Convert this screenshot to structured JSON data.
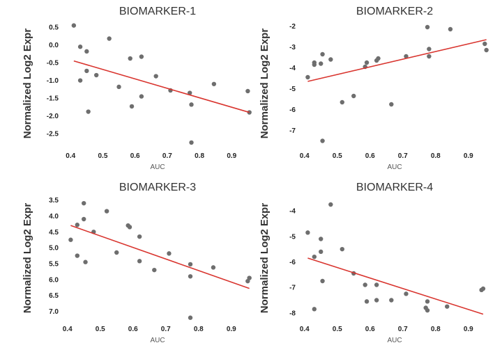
{
  "chart_data": [
    {
      "type": "scatter",
      "title": "BIOMARKER-1",
      "xlabel": "AUC",
      "ylabel": "Normalized Log2 Expr",
      "xlim": [
        0.38,
        0.96
      ],
      "ylim": [
        -2.85,
        0.68
      ],
      "y_inverted": false,
      "xticks": [
        0.4,
        0.5,
        0.6,
        0.7,
        0.8,
        0.9
      ],
      "xtick_labels": [
        "0.4",
        "0.5",
        "0.6",
        "0.7",
        "0.8",
        "0.9"
      ],
      "yticks": [
        0.5,
        0,
        -0.5,
        -1,
        -1.5,
        -2,
        -2.5
      ],
      "ytick_labels": [
        "0.5",
        "0.0",
        "-0.5",
        "-1.0",
        "-1.5",
        "-2.0",
        "-2.5"
      ],
      "point_color": "#6e6e6e",
      "line_color": "#d9352f",
      "points": [
        {
          "x": 0.41,
          "y": 0.55
        },
        {
          "x": 0.43,
          "y": -0.05
        },
        {
          "x": 0.43,
          "y": -1.0
        },
        {
          "x": 0.45,
          "y": -0.18
        },
        {
          "x": 0.45,
          "y": -0.73
        },
        {
          "x": 0.455,
          "y": -1.88
        },
        {
          "x": 0.48,
          "y": -0.85
        },
        {
          "x": 0.52,
          "y": 0.18
        },
        {
          "x": 0.55,
          "y": -1.18
        },
        {
          "x": 0.585,
          "y": -0.38
        },
        {
          "x": 0.59,
          "y": -1.73
        },
        {
          "x": 0.62,
          "y": -0.33
        },
        {
          "x": 0.62,
          "y": -1.45
        },
        {
          "x": 0.665,
          "y": -0.88
        },
        {
          "x": 0.71,
          "y": -1.28
        },
        {
          "x": 0.77,
          "y": -1.35
        },
        {
          "x": 0.775,
          "y": -1.68
        },
        {
          "x": 0.775,
          "y": -2.75
        },
        {
          "x": 0.845,
          "y": -1.1
        },
        {
          "x": 0.95,
          "y": -1.3
        },
        {
          "x": 0.955,
          "y": -1.9
        }
      ],
      "trend": {
        "x0": 0.41,
        "y0": -0.45,
        "x1": 0.955,
        "y1": -1.9
      }
    },
    {
      "type": "scatter",
      "title": "BIOMARKER-2",
      "xlabel": "AUC",
      "ylabel": "Normalized Log2 Expr",
      "xlim": [
        0.39,
        0.96
      ],
      "ylim": [
        -7.75,
        -1.75
      ],
      "y_inverted": false,
      "xticks": [
        0.4,
        0.5,
        0.6,
        0.7,
        0.8,
        0.9
      ],
      "xtick_labels": [
        "0.4",
        "0.5",
        "0.6",
        "0.7",
        "0.8",
        "0.9"
      ],
      "yticks": [
        -2,
        -3,
        -4,
        -5,
        -6,
        -7
      ],
      "ytick_labels": [
        "-2",
        "-3",
        "-4",
        "-5",
        "-6",
        "-7"
      ],
      "point_color": "#6e6e6e",
      "line_color": "#d9352f",
      "points": [
        {
          "x": 0.41,
          "y": -4.45
        },
        {
          "x": 0.43,
          "y": -3.75
        },
        {
          "x": 0.43,
          "y": -3.85
        },
        {
          "x": 0.45,
          "y": -3.8
        },
        {
          "x": 0.455,
          "y": -3.35
        },
        {
          "x": 0.455,
          "y": -7.5
        },
        {
          "x": 0.48,
          "y": -3.6
        },
        {
          "x": 0.515,
          "y": -5.65
        },
        {
          "x": 0.55,
          "y": -5.35
        },
        {
          "x": 0.585,
          "y": -3.95
        },
        {
          "x": 0.59,
          "y": -3.75
        },
        {
          "x": 0.62,
          "y": -3.65
        },
        {
          "x": 0.625,
          "y": -3.55
        },
        {
          "x": 0.665,
          "y": -5.75
        },
        {
          "x": 0.71,
          "y": -3.45
        },
        {
          "x": 0.775,
          "y": -2.05
        },
        {
          "x": 0.78,
          "y": -3.1
        },
        {
          "x": 0.78,
          "y": -3.45
        },
        {
          "x": 0.845,
          "y": -2.15
        },
        {
          "x": 0.95,
          "y": -2.85
        },
        {
          "x": 0.955,
          "y": -3.15
        }
      ],
      "trend": {
        "x0": 0.41,
        "y0": -4.65,
        "x1": 0.955,
        "y1": -2.65
      }
    },
    {
      "type": "scatter",
      "title": "BIOMARKER-3",
      "xlabel": "AUC",
      "ylabel": "Normalized Log2 Expr",
      "xlim": [
        0.39,
        0.96
      ],
      "ylim": [
        3.4,
        7.25
      ],
      "y_inverted": true,
      "xticks": [
        0.4,
        0.5,
        0.6,
        0.7,
        0.8,
        0.9
      ],
      "xtick_labels": [
        "0.4",
        "0.5",
        "0.6",
        "0.7",
        "0.8",
        "0.9"
      ],
      "yticks": [
        3.5,
        4,
        4.5,
        5,
        5.5,
        6,
        6.5,
        7
      ],
      "ytick_labels": [
        "3.5",
        "4.0",
        "4.5",
        "5.0",
        "5.5",
        "6.0",
        "6.5",
        "7.0"
      ],
      "point_color": "#6e6e6e",
      "line_color": "#d9352f",
      "points": [
        {
          "x": 0.41,
          "y": 4.75
        },
        {
          "x": 0.43,
          "y": 4.28
        },
        {
          "x": 0.43,
          "y": 5.25
        },
        {
          "x": 0.45,
          "y": 3.6
        },
        {
          "x": 0.45,
          "y": 4.1
        },
        {
          "x": 0.455,
          "y": 5.45
        },
        {
          "x": 0.48,
          "y": 4.5
        },
        {
          "x": 0.52,
          "y": 3.85
        },
        {
          "x": 0.55,
          "y": 5.15
        },
        {
          "x": 0.585,
          "y": 4.3
        },
        {
          "x": 0.59,
          "y": 4.35
        },
        {
          "x": 0.62,
          "y": 4.65
        },
        {
          "x": 0.62,
          "y": 5.42
        },
        {
          "x": 0.665,
          "y": 5.7
        },
        {
          "x": 0.71,
          "y": 5.18
        },
        {
          "x": 0.775,
          "y": 5.52
        },
        {
          "x": 0.775,
          "y": 5.9
        },
        {
          "x": 0.775,
          "y": 7.2
        },
        {
          "x": 0.845,
          "y": 5.62
        },
        {
          "x": 0.95,
          "y": 6.05
        },
        {
          "x": 0.955,
          "y": 5.95
        }
      ],
      "trend": {
        "x0": 0.41,
        "y0": 4.3,
        "x1": 0.955,
        "y1": 6.28
      }
    },
    {
      "type": "scatter",
      "title": "BIOMARKER-4",
      "xlabel": "AUC",
      "ylabel": "Normalized Log2 Expr",
      "xlim": [
        0.39,
        0.96
      ],
      "ylim": [
        -8.25,
        -3.45
      ],
      "y_inverted": false,
      "xticks": [
        0.4,
        0.5,
        0.6,
        0.7,
        0.8,
        0.9
      ],
      "xtick_labels": [
        "0.4",
        "0.5",
        "0.6",
        "0.7",
        "0.8",
        "0.9"
      ],
      "yticks": [
        -4,
        -5,
        -6,
        -7,
        -8
      ],
      "ytick_labels": [
        "-4",
        "-5",
        "-6",
        "-7",
        "-8"
      ],
      "point_color": "#6e6e6e",
      "line_color": "#d9352f",
      "points": [
        {
          "x": 0.41,
          "y": -4.85
        },
        {
          "x": 0.43,
          "y": -5.8
        },
        {
          "x": 0.43,
          "y": -7.85
        },
        {
          "x": 0.45,
          "y": -5.1
        },
        {
          "x": 0.45,
          "y": -5.6
        },
        {
          "x": 0.455,
          "y": -6.75
        },
        {
          "x": 0.48,
          "y": -3.75
        },
        {
          "x": 0.515,
          "y": -5.5
        },
        {
          "x": 0.55,
          "y": -6.45
        },
        {
          "x": 0.585,
          "y": -6.9
        },
        {
          "x": 0.59,
          "y": -7.55
        },
        {
          "x": 0.62,
          "y": -6.9
        },
        {
          "x": 0.62,
          "y": -7.5
        },
        {
          "x": 0.665,
          "y": -7.5
        },
        {
          "x": 0.71,
          "y": -7.25
        },
        {
          "x": 0.77,
          "y": -7.8
        },
        {
          "x": 0.775,
          "y": -7.55
        },
        {
          "x": 0.775,
          "y": -7.9
        },
        {
          "x": 0.835,
          "y": -7.75
        },
        {
          "x": 0.94,
          "y": -7.1
        },
        {
          "x": 0.945,
          "y": -7.05
        }
      ],
      "trend": {
        "x0": 0.41,
        "y0": -5.85,
        "x1": 0.945,
        "y1": -8.05
      }
    }
  ]
}
